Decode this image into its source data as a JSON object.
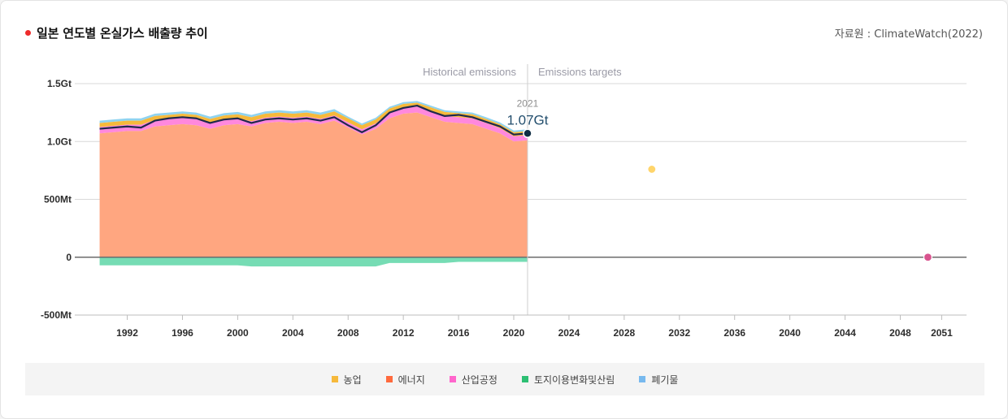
{
  "header": {
    "title": "일본 연도별 온실가스 배출량 추이",
    "source": "자료원 : ClimateWatch(2022)"
  },
  "colors": {
    "title_dot": "#ee2b2b",
    "agriculture": "#f6b93b",
    "energy": "#ffa680",
    "industry": "#ff88dd",
    "lulucf": "#76dcb4",
    "waste": "#8fd3f0",
    "total_line": "#1f2a4d",
    "target_2030": "#ffd56b",
    "target_2050": "#d9548f"
  },
  "chart_data": {
    "type": "area",
    "title": "일본 연도별 온실가스 배출량 추이",
    "region_labels": [
      "Historical emissions",
      "Emissions targets"
    ],
    "x": [
      1990,
      1991,
      1992,
      1993,
      1994,
      1995,
      1996,
      1997,
      1998,
      1999,
      2000,
      2001,
      2002,
      2003,
      2004,
      2005,
      2006,
      2007,
      2008,
      2009,
      2010,
      2011,
      2012,
      2013,
      2014,
      2015,
      2016,
      2017,
      2018,
      2019,
      2020,
      2021
    ],
    "x_ticks": [
      "1992",
      "1996",
      "2000",
      "2004",
      "2008",
      "2012",
      "2016",
      "2020",
      "2024",
      "2028",
      "2032",
      "2036",
      "2040",
      "2044",
      "2048",
      "2051"
    ],
    "x_tick_values": [
      1992,
      1996,
      2000,
      2004,
      2008,
      2012,
      2016,
      2020,
      2024,
      2028,
      2032,
      2036,
      2040,
      2044,
      2048,
      2051
    ],
    "xlim": [
      1988.2,
      2052.8
    ],
    "y_ticks": [
      "1.5Gt",
      "1.0Gt",
      "500Mt",
      "0",
      "-500Mt"
    ],
    "y_tick_values": [
      1.5,
      1.0,
      0.5,
      0,
      -0.5
    ],
    "ylim": [
      -0.5,
      1.5
    ],
    "y_unit": "Gt",
    "series": [
      {
        "name": "에너지",
        "key": "energy",
        "values": [
          1.07,
          1.08,
          1.09,
          1.09,
          1.13,
          1.14,
          1.15,
          1.14,
          1.11,
          1.14,
          1.15,
          1.13,
          1.16,
          1.17,
          1.16,
          1.17,
          1.15,
          1.18,
          1.12,
          1.06,
          1.11,
          1.2,
          1.24,
          1.25,
          1.21,
          1.17,
          1.16,
          1.15,
          1.11,
          1.07,
          1.0,
          1.01
        ]
      },
      {
        "name": "산업공정",
        "key": "industry",
        "values": [
          0.055,
          0.055,
          0.055,
          0.055,
          0.055,
          0.055,
          0.055,
          0.055,
          0.05,
          0.05,
          0.05,
          0.045,
          0.045,
          0.045,
          0.045,
          0.045,
          0.045,
          0.045,
          0.045,
          0.045,
          0.045,
          0.05,
          0.05,
          0.05,
          0.05,
          0.05,
          0.05,
          0.05,
          0.05,
          0.045,
          0.045,
          0.045
        ]
      },
      {
        "name": "농업",
        "key": "agriculture",
        "values": [
          0.035,
          0.035,
          0.035,
          0.035,
          0.035,
          0.035,
          0.035,
          0.035,
          0.035,
          0.035,
          0.035,
          0.035,
          0.035,
          0.035,
          0.035,
          0.035,
          0.035,
          0.035,
          0.035,
          0.035,
          0.035,
          0.035,
          0.035,
          0.035,
          0.035,
          0.035,
          0.035,
          0.035,
          0.035,
          0.035,
          0.035,
          0.035
        ]
      },
      {
        "name": "폐기물",
        "key": "waste",
        "values": [
          0.02,
          0.02,
          0.02,
          0.02,
          0.02,
          0.02,
          0.02,
          0.02,
          0.02,
          0.02,
          0.02,
          0.02,
          0.02,
          0.02,
          0.02,
          0.02,
          0.02,
          0.02,
          0.015,
          0.015,
          0.015,
          0.015,
          0.015,
          0.015,
          0.015,
          0.015,
          0.015,
          0.015,
          0.015,
          0.015,
          0.015,
          0.015
        ]
      },
      {
        "name": "토지이용변화및산림",
        "key": "lulucf",
        "values": [
          -0.07,
          -0.07,
          -0.07,
          -0.07,
          -0.07,
          -0.07,
          -0.07,
          -0.07,
          -0.07,
          -0.07,
          -0.07,
          -0.08,
          -0.08,
          -0.08,
          -0.08,
          -0.08,
          -0.08,
          -0.08,
          -0.08,
          -0.08,
          -0.08,
          -0.05,
          -0.05,
          -0.05,
          -0.05,
          -0.05,
          -0.04,
          -0.04,
          -0.04,
          -0.04,
          -0.04,
          -0.04
        ]
      }
    ],
    "total_line": {
      "values": [
        1.11,
        1.12,
        1.13,
        1.12,
        1.18,
        1.2,
        1.21,
        1.2,
        1.16,
        1.19,
        1.2,
        1.16,
        1.19,
        1.2,
        1.19,
        1.2,
        1.18,
        1.21,
        1.14,
        1.08,
        1.14,
        1.25,
        1.29,
        1.31,
        1.26,
        1.22,
        1.23,
        1.21,
        1.17,
        1.13,
        1.06,
        1.07
      ]
    },
    "highlight": {
      "year": "2021",
      "value_label": "1.07Gt",
      "x": 2021,
      "y": 1.07
    },
    "targets": [
      {
        "year": 2030,
        "value": 0.76,
        "color_key": "target_2030"
      },
      {
        "year": 2050,
        "value": 0.0,
        "color_key": "target_2050"
      }
    ],
    "split_year": 2021,
    "grid": true,
    "legend_position": "bottom"
  },
  "legend": [
    {
      "label": "농업",
      "color": "#f6b93b"
    },
    {
      "label": "에너지",
      "color": "#ff6a3d"
    },
    {
      "label": "산업공정",
      "color": "#ff66cc"
    },
    {
      "label": "토지이용변화및산림",
      "color": "#2dbf73"
    },
    {
      "label": "폐기물",
      "color": "#77b9ee"
    }
  ]
}
